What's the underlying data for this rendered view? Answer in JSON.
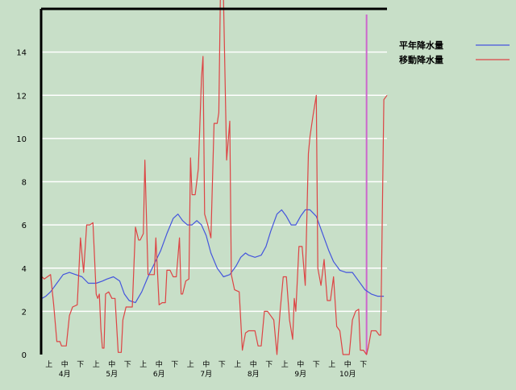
{
  "chart_data": {
    "type": "line",
    "title": "",
    "xlabel": "",
    "ylabel": "",
    "ylim": [
      0,
      16
    ],
    "yticks": [
      0,
      2,
      4,
      6,
      8,
      10,
      12,
      14
    ],
    "grid": "horizontal",
    "background_color": "#c8dfc8",
    "grid_color": "#ffffff",
    "legend_position": "top-right",
    "x_range": [
      0,
      42
    ],
    "period_ticks": [
      {
        "label": "上",
        "x": 0.5
      },
      {
        "label": "中",
        "x": 1.5
      },
      {
        "label": "下",
        "x": 2.5
      },
      {
        "label": "上",
        "x": 3.5
      },
      {
        "label": "中",
        "x": 4.5
      },
      {
        "label": "下",
        "x": 5.5
      },
      {
        "label": "上",
        "x": 6.5
      },
      {
        "label": "中",
        "x": 7.5
      },
      {
        "label": "下",
        "x": 8.5
      },
      {
        "label": "上",
        "x": 9.5
      },
      {
        "label": "中",
        "x": 10.5
      },
      {
        "label": "下",
        "x": 11.5
      },
      {
        "label": "上",
        "x": 12.5
      },
      {
        "label": "中",
        "x": 13.5
      },
      {
        "label": "下",
        "x": 14.5
      },
      {
        "label": "上",
        "x": 15.5
      },
      {
        "label": "中",
        "x": 16.5
      },
      {
        "label": "下",
        "x": 17.5
      },
      {
        "label": "上",
        "x": 18.5
      },
      {
        "label": "中",
        "x": 19.5
      },
      {
        "label": "下",
        "x": 20.5
      }
    ],
    "month_labels": [
      {
        "label": "4月",
        "x": 1.5
      },
      {
        "label": "5月",
        "x": 4.5
      },
      {
        "label": "6月",
        "x": 7.5
      },
      {
        "label": "7月",
        "x": 10.5
      },
      {
        "label": "8月",
        "x": 13.5
      },
      {
        "label": "9月",
        "x": 16.5
      },
      {
        "label": "10月",
        "x": 19.5
      }
    ],
    "marker_x": 20.7,
    "marker_color": "#cc66cc",
    "series": [
      {
        "name": "平年降水量",
        "color": "#4455dd",
        "points": [
          [
            0.0,
            0.0
          ],
          [
            0.05,
            2.6
          ],
          [
            0.3,
            2.7
          ],
          [
            0.6,
            2.9
          ],
          [
            1.0,
            3.3
          ],
          [
            1.4,
            3.7
          ],
          [
            1.8,
            3.8
          ],
          [
            2.2,
            3.7
          ],
          [
            2.6,
            3.6
          ],
          [
            3.0,
            3.3
          ],
          [
            3.5,
            3.3
          ],
          [
            3.9,
            3.4
          ],
          [
            4.2,
            3.5
          ],
          [
            4.6,
            3.6
          ],
          [
            5.0,
            3.4
          ],
          [
            5.3,
            2.8
          ],
          [
            5.6,
            2.5
          ],
          [
            6.0,
            2.4
          ],
          [
            6.4,
            2.9
          ],
          [
            6.8,
            3.6
          ],
          [
            7.2,
            4.2
          ],
          [
            7.6,
            4.8
          ],
          [
            8.0,
            5.6
          ],
          [
            8.4,
            6.3
          ],
          [
            8.7,
            6.5
          ],
          [
            9.0,
            6.2
          ],
          [
            9.3,
            6.0
          ],
          [
            9.6,
            6.0
          ],
          [
            9.9,
            6.2
          ],
          [
            10.2,
            6.0
          ],
          [
            10.5,
            5.5
          ],
          [
            10.8,
            4.7
          ],
          [
            11.2,
            4.0
          ],
          [
            11.6,
            3.6
          ],
          [
            12.0,
            3.7
          ],
          [
            12.4,
            4.1
          ],
          [
            12.7,
            4.5
          ],
          [
            13.0,
            4.7
          ],
          [
            13.2,
            4.6
          ],
          [
            13.6,
            4.5
          ],
          [
            14.0,
            4.6
          ],
          [
            14.3,
            5.0
          ],
          [
            14.6,
            5.7
          ],
          [
            15.0,
            6.5
          ],
          [
            15.3,
            6.7
          ],
          [
            15.6,
            6.4
          ],
          [
            15.9,
            6.0
          ],
          [
            16.2,
            6.0
          ],
          [
            16.5,
            6.4
          ],
          [
            16.8,
            6.7
          ],
          [
            17.1,
            6.7
          ],
          [
            17.5,
            6.4
          ],
          [
            17.9,
            5.6
          ],
          [
            18.3,
            4.8
          ],
          [
            18.6,
            4.3
          ],
          [
            19.0,
            3.9
          ],
          [
            19.4,
            3.8
          ],
          [
            19.8,
            3.8
          ],
          [
            20.2,
            3.4
          ],
          [
            20.6,
            3.0
          ],
          [
            21.0,
            2.8
          ],
          [
            21.4,
            2.7
          ],
          [
            21.8,
            2.7
          ]
        ]
      },
      {
        "name": "移動降水量",
        "color": "#dd4444",
        "points": [
          [
            0.0,
            0.0
          ],
          [
            0.05,
            3.6
          ],
          [
            0.2,
            3.5
          ],
          [
            0.4,
            3.6
          ],
          [
            0.6,
            3.7
          ],
          [
            0.8,
            2.3
          ],
          [
            1.0,
            0.6
          ],
          [
            1.2,
            0.6
          ],
          [
            1.3,
            0.4
          ],
          [
            1.6,
            0.4
          ],
          [
            1.8,
            1.8
          ],
          [
            2.0,
            2.2
          ],
          [
            2.3,
            2.3
          ],
          [
            2.5,
            5.4
          ],
          [
            2.7,
            3.8
          ],
          [
            2.9,
            6.0
          ],
          [
            3.1,
            6.0
          ],
          [
            3.3,
            6.1
          ],
          [
            3.5,
            2.8
          ],
          [
            3.6,
            2.6
          ],
          [
            3.7,
            2.8
          ],
          [
            3.8,
            1.2
          ],
          [
            3.9,
            0.3
          ],
          [
            4.0,
            0.3
          ],
          [
            4.1,
            2.8
          ],
          [
            4.3,
            2.9
          ],
          [
            4.5,
            2.6
          ],
          [
            4.7,
            2.6
          ],
          [
            4.9,
            0.1
          ],
          [
            5.1,
            0.1
          ],
          [
            5.2,
            1.6
          ],
          [
            5.4,
            2.2
          ],
          [
            5.6,
            2.2
          ],
          [
            5.8,
            2.2
          ],
          [
            6.0,
            5.9
          ],
          [
            6.2,
            5.3
          ],
          [
            6.3,
            5.3
          ],
          [
            6.5,
            5.6
          ],
          [
            6.6,
            9.0
          ],
          [
            6.8,
            3.7
          ],
          [
            7.0,
            3.7
          ],
          [
            7.2,
            3.7
          ],
          [
            7.3,
            5.4
          ],
          [
            7.5,
            2.3
          ],
          [
            7.7,
            2.4
          ],
          [
            7.9,
            2.4
          ],
          [
            8.0,
            3.9
          ],
          [
            8.2,
            3.9
          ],
          [
            8.4,
            3.6
          ],
          [
            8.6,
            3.6
          ],
          [
            8.8,
            5.4
          ],
          [
            8.9,
            2.8
          ],
          [
            9.0,
            2.8
          ],
          [
            9.2,
            3.4
          ],
          [
            9.4,
            3.5
          ],
          [
            9.5,
            9.1
          ],
          [
            9.6,
            7.4
          ],
          [
            9.8,
            7.4
          ],
          [
            10.0,
            8.6
          ],
          [
            10.2,
            12.8
          ],
          [
            10.3,
            13.8
          ],
          [
            10.4,
            6.5
          ],
          [
            10.6,
            6.0
          ],
          [
            10.8,
            5.4
          ],
          [
            11.0,
            10.7
          ],
          [
            11.2,
            10.7
          ],
          [
            11.3,
            11.2
          ],
          [
            11.4,
            16.5
          ],
          [
            11.6,
            16.5
          ],
          [
            11.8,
            9.0
          ],
          [
            12.0,
            10.8
          ],
          [
            12.1,
            3.7
          ],
          [
            12.3,
            3.0
          ],
          [
            12.6,
            2.9
          ],
          [
            12.8,
            0.2
          ],
          [
            13.0,
            1.0
          ],
          [
            13.2,
            1.1
          ],
          [
            13.6,
            1.1
          ],
          [
            13.8,
            0.4
          ],
          [
            14.0,
            0.4
          ],
          [
            14.2,
            2.0
          ],
          [
            14.4,
            2.0
          ],
          [
            14.6,
            1.8
          ],
          [
            14.8,
            1.6
          ],
          [
            15.0,
            0.0
          ],
          [
            15.2,
            2.0
          ],
          [
            15.4,
            3.6
          ],
          [
            15.6,
            3.6
          ],
          [
            15.8,
            1.6
          ],
          [
            16.0,
            0.7
          ],
          [
            16.1,
            2.6
          ],
          [
            16.2,
            2.0
          ],
          [
            16.4,
            5.0
          ],
          [
            16.6,
            5.0
          ],
          [
            16.8,
            3.2
          ],
          [
            17.0,
            9.3
          ],
          [
            17.1,
            10.1
          ],
          [
            17.3,
            11.1
          ],
          [
            17.5,
            12.0
          ],
          [
            17.6,
            4.0
          ],
          [
            17.8,
            3.2
          ],
          [
            18.0,
            4.4
          ],
          [
            18.2,
            2.5
          ],
          [
            18.4,
            2.5
          ],
          [
            18.6,
            3.6
          ],
          [
            18.8,
            1.3
          ],
          [
            19.0,
            1.1
          ],
          [
            19.2,
            0.0
          ],
          [
            19.4,
            0.0
          ],
          [
            19.6,
            0.0
          ],
          [
            19.8,
            1.6
          ],
          [
            20.0,
            2.0
          ],
          [
            20.2,
            2.1
          ],
          [
            20.3,
            0.2
          ],
          [
            20.5,
            0.2
          ],
          [
            20.7,
            0.0
          ],
          [
            20.8,
            0.3
          ],
          [
            21.0,
            1.1
          ],
          [
            21.3,
            1.1
          ],
          [
            21.5,
            0.9
          ],
          [
            21.6,
            0.9
          ],
          [
            21.8,
            11.8
          ],
          [
            22.0,
            12.0
          ]
        ]
      }
    ]
  }
}
